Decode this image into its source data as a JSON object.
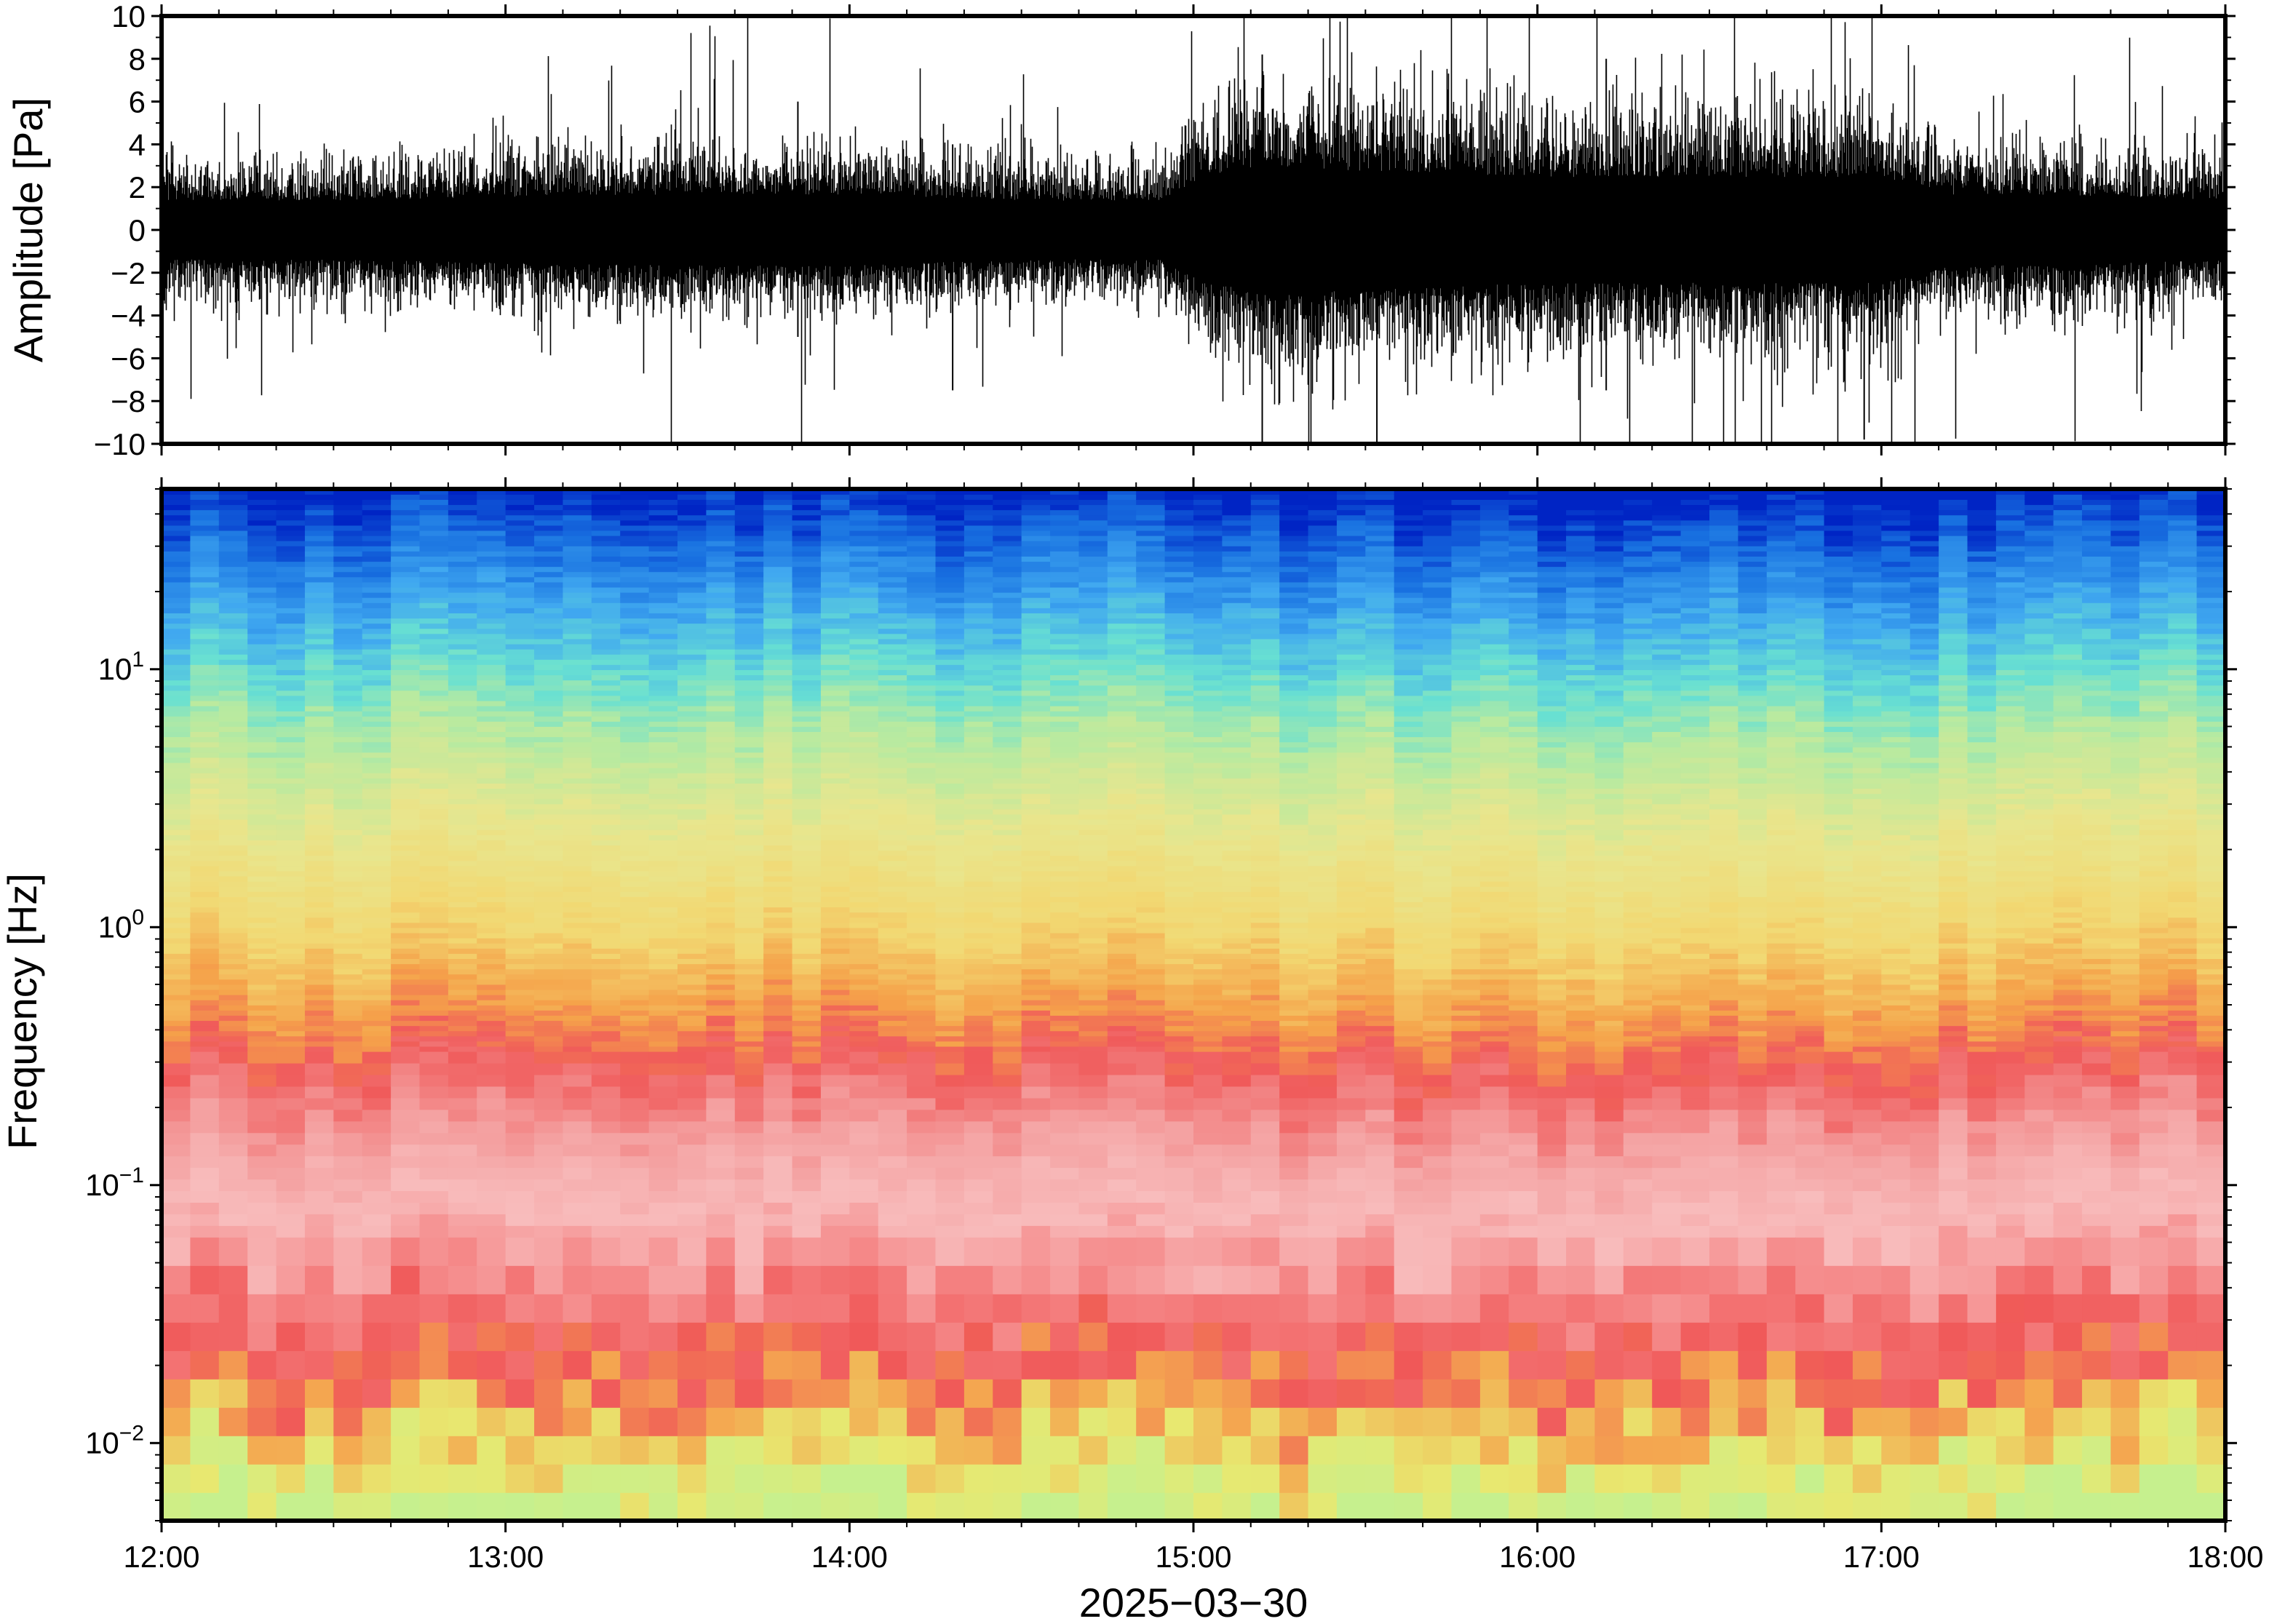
{
  "chart_data": [
    {
      "type": "line",
      "title": "",
      "ylabel": "Amplitude [Pa]",
      "ylim": [
        -10,
        10
      ],
      "yticks": [
        -10,
        -8,
        -6,
        -4,
        -2,
        0,
        2,
        4,
        6,
        8,
        10
      ],
      "ytick_labels": [
        "−10",
        "−8",
        "−6",
        "−4",
        "−2",
        "0",
        "2",
        "4",
        "6",
        "8",
        "10"
      ],
      "xlim": [
        "12:00",
        "18:00"
      ],
      "line_color": "#000000",
      "envelope": {
        "hours": [
          12.0,
          12.5,
          13.0,
          13.5,
          14.0,
          14.5,
          14.9,
          15.0,
          15.2,
          15.5,
          16.0,
          16.5,
          17.0,
          17.2,
          17.5,
          18.0
        ],
        "typical_peak_pa": [
          2.5,
          2.5,
          2.8,
          3.0,
          3.0,
          2.5,
          2.5,
          4.0,
          5.5,
          5.0,
          4.5,
          4.5,
          4.5,
          3.0,
          3.0,
          2.5
        ]
      },
      "peak_events": [
        {
          "time": "15:12",
          "max_pa": 8.2,
          "min_pa": -10
        },
        {
          "time": "15:32",
          "max_pa": 6.0,
          "min_pa": -10
        },
        {
          "time": "16:12",
          "max_pa": 8.0,
          "min_pa": -7.5
        },
        {
          "time": "16:57",
          "max_pa": 4.5,
          "min_pa": -9.8
        },
        {
          "time": "13:51",
          "max_pa": 6.0,
          "min_pa": -5.0
        },
        {
          "time": "14:18",
          "max_pa": 4.0,
          "min_pa": -7.5
        }
      ]
    },
    {
      "type": "heatmap",
      "title": "",
      "xlabel": "2025−03−30",
      "ylabel": "Frequency [Hz]",
      "yscale": "log",
      "ylim": [
        0.005,
        50
      ],
      "yticks": [
        0.01,
        0.1,
        1,
        10
      ],
      "ytick_labels": [
        {
          "base": "10",
          "exp": "−2"
        },
        {
          "base": "10",
          "exp": "−1"
        },
        {
          "base": "10",
          "exp": "0"
        },
        {
          "base": "10",
          "exp": "1"
        }
      ],
      "x_ticks": [
        "12:00",
        "13:00",
        "14:00",
        "15:00",
        "16:00",
        "17:00",
        "18:00"
      ],
      "colormap": {
        "name": "rainbow",
        "stops": [
          "#2ee0e8",
          "#a8f0a0",
          "#e8ec78",
          "#f7c65a",
          "#f58e40",
          "#f05a5a",
          "#f7b8b8",
          "#6fe0d0",
          "#3cb0f0",
          "#1270e0",
          "#0020c0"
        ]
      },
      "band_colors_by_log10_frequency": [
        {
          "log10_f": -2.3,
          "color": "#c6f08e"
        },
        {
          "log10_f": -2.05,
          "color": "#e8e870"
        },
        {
          "log10_f": -1.85,
          "color": "#f4a850"
        },
        {
          "log10_f": -1.65,
          "color": "#f05858"
        },
        {
          "log10_f": -1.4,
          "color": "#f48080"
        },
        {
          "log10_f": -1.1,
          "color": "#f8bcbc"
        },
        {
          "log10_f": -0.8,
          "color": "#f4a0a0"
        },
        {
          "log10_f": -0.5,
          "color": "#f05a5a"
        },
        {
          "log10_f": -0.3,
          "color": "#f5a24a"
        },
        {
          "log10_f": 0.0,
          "color": "#f2d872"
        },
        {
          "log10_f": 0.4,
          "color": "#e8e68e"
        },
        {
          "log10_f": 0.75,
          "color": "#b8eaa0"
        },
        {
          "log10_f": 1.0,
          "color": "#68e0d2"
        },
        {
          "log10_f": 1.25,
          "color": "#40a8f0"
        },
        {
          "log10_f": 1.5,
          "color": "#1870e0"
        },
        {
          "log10_f": 1.7,
          "color": "#0024c4"
        }
      ]
    }
  ]
}
